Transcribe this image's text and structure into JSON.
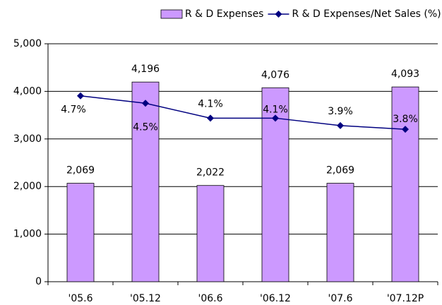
{
  "chart_data": {
    "type": "bar-line",
    "categories": [
      "'05.6",
      "'05.12",
      "'06.6",
      "'06.12",
      "'07.6",
      "'07.12P"
    ],
    "series": [
      {
        "name": "R & D Expenses",
        "type": "bar",
        "color": "#cc99ff",
        "values": [
          2069,
          4196,
          2022,
          4076,
          2069,
          4093
        ],
        "value_labels": [
          "2,069",
          "4,196",
          "2,022",
          "4,076",
          "2,069",
          "4,093"
        ]
      },
      {
        "name": "R & D Expenses/Net Sales (%)",
        "type": "line",
        "axis": "y2",
        "color": "#000080",
        "values": [
          4.7,
          4.5,
          4.1,
          4.1,
          3.9,
          3.8
        ],
        "value_labels": [
          "4.7%",
          "4.5%",
          "4.1%",
          "4.1%",
          "3.9%",
          "3.8%"
        ]
      }
    ],
    "ylim": [
      0,
      5000
    ],
    "yticks": [
      0,
      {
        "value": 1000,
        "label": "1,000"
      },
      {
        "value": 2000,
        "label": "2,000"
      },
      {
        "value": 3000,
        "label": "3,000"
      },
      {
        "value": 4000,
        "label": "4,000"
      },
      {
        "value": 5000,
        "label": "5,000"
      }
    ],
    "y2lim": [
      -0.3,
      6.1
    ],
    "grid": true,
    "legend": "top"
  }
}
